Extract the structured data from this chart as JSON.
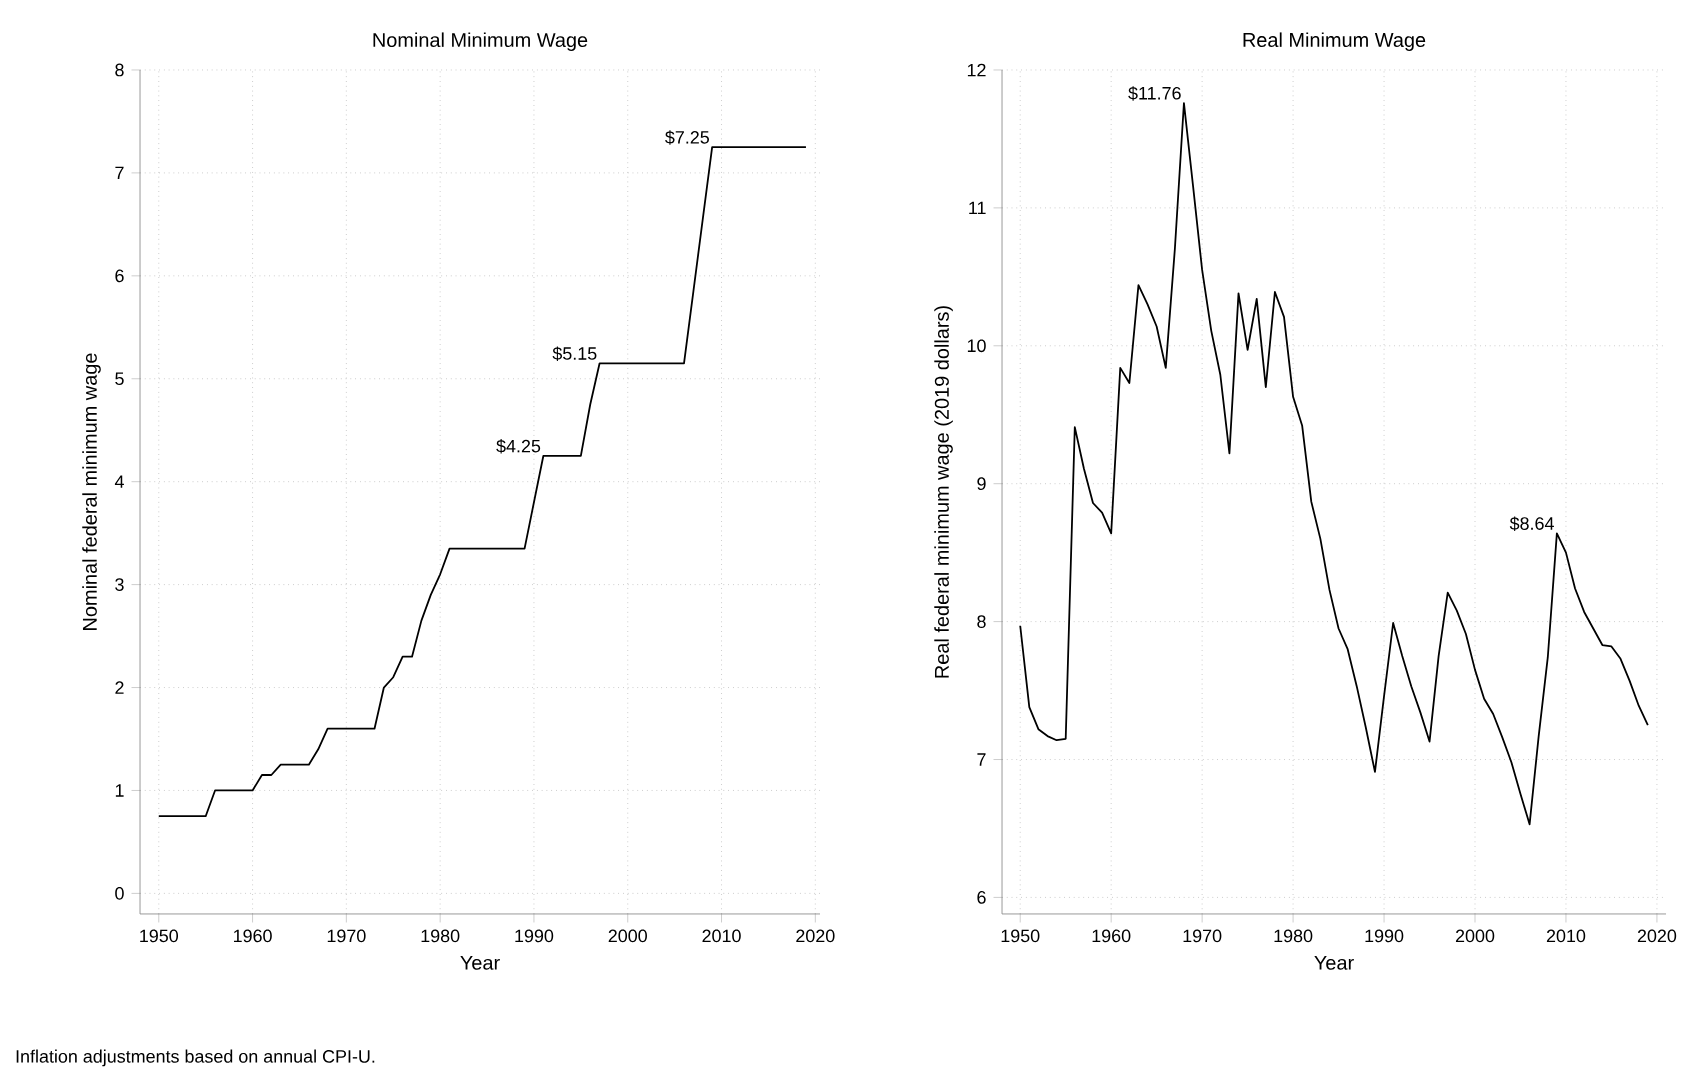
{
  "chart_data": [
    {
      "type": "line",
      "title": "Nominal Minimum Wage",
      "xlabel": "Year",
      "ylabel": "Nominal federal minimum wage",
      "x": [
        1950,
        1951,
        1952,
        1953,
        1954,
        1955,
        1956,
        1957,
        1958,
        1959,
        1960,
        1961,
        1962,
        1963,
        1964,
        1965,
        1966,
        1967,
        1968,
        1969,
        1970,
        1971,
        1972,
        1973,
        1974,
        1975,
        1976,
        1977,
        1978,
        1979,
        1980,
        1981,
        1982,
        1983,
        1984,
        1985,
        1986,
        1987,
        1988,
        1989,
        1990,
        1991,
        1992,
        1993,
        1994,
        1995,
        1996,
        1997,
        1998,
        1999,
        2000,
        2001,
        2002,
        2003,
        2004,
        2005,
        2006,
        2007,
        2008,
        2009,
        2010,
        2011,
        2012,
        2013,
        2014,
        2015,
        2016,
        2017,
        2018,
        2019
      ],
      "series": [
        {
          "color": "#000000",
          "values": [
            0.75,
            0.75,
            0.75,
            0.75,
            0.75,
            0.75,
            1.0,
            1.0,
            1.0,
            1.0,
            1.0,
            1.15,
            1.15,
            1.25,
            1.25,
            1.25,
            1.25,
            1.4,
            1.6,
            1.6,
            1.6,
            1.6,
            1.6,
            1.6,
            2.0,
            2.1,
            2.3,
            2.3,
            2.65,
            2.9,
            3.1,
            3.35,
            3.35,
            3.35,
            3.35,
            3.35,
            3.35,
            3.35,
            3.35,
            3.35,
            3.8,
            4.25,
            4.25,
            4.25,
            4.25,
            4.25,
            4.75,
            5.15,
            5.15,
            5.15,
            5.15,
            5.15,
            5.15,
            5.15,
            5.15,
            5.15,
            5.15,
            5.85,
            6.55,
            7.25,
            7.25,
            7.25,
            7.25,
            7.25,
            7.25,
            7.25,
            7.25,
            7.25,
            7.25,
            7.25
          ]
        }
      ],
      "xlim": [
        1948,
        2020.5
      ],
      "xticks": [
        1950,
        1960,
        1970,
        1980,
        1990,
        2000,
        2010,
        2020
      ],
      "ylim": [
        -0.2,
        8
      ],
      "yticks": [
        0,
        1,
        2,
        3,
        4,
        5,
        6,
        7,
        8
      ],
      "grid": true,
      "line_style": "solid",
      "annotations": [
        {
          "text": "$4.25",
          "x": 1991,
          "y": 4.25
        },
        {
          "text": "$5.15",
          "x": 1997,
          "y": 5.15
        },
        {
          "text": "$7.25",
          "x": 2009,
          "y": 7.25
        },
        "Inflation adjustments based on annual CPI-U."
      ]
    },
    {
      "type": "line",
      "title": "Real Minimum Wage",
      "xlabel": "Year",
      "ylabel": "Real federal minimum wage (2019 dollars)",
      "x": [
        1950,
        1951,
        1952,
        1953,
        1954,
        1955,
        1956,
        1957,
        1958,
        1959,
        1960,
        1961,
        1962,
        1963,
        1964,
        1965,
        1966,
        1967,
        1968,
        1969,
        1970,
        1971,
        1972,
        1973,
        1974,
        1975,
        1976,
        1977,
        1978,
        1979,
        1980,
        1981,
        1982,
        1983,
        1984,
        1985,
        1986,
        1987,
        1988,
        1989,
        1990,
        1991,
        1992,
        1993,
        1994,
        1995,
        1996,
        1997,
        1998,
        1999,
        2000,
        2001,
        2002,
        2003,
        2004,
        2005,
        2006,
        2007,
        2008,
        2009,
        2010,
        2011,
        2012,
        2013,
        2014,
        2015,
        2016,
        2017,
        2018,
        2019
      ],
      "series": [
        {
          "color": "#000000",
          "values": [
            7.97,
            7.38,
            7.22,
            7.17,
            7.14,
            7.15,
            9.41,
            9.11,
            8.86,
            8.79,
            8.64,
            9.84,
            9.73,
            10.44,
            10.3,
            10.14,
            9.84,
            10.7,
            11.76,
            11.16,
            10.55,
            10.11,
            9.79,
            9.22,
            10.38,
            9.97,
            10.34,
            9.7,
            10.39,
            10.21,
            9.63,
            9.42,
            8.87,
            8.6,
            8.23,
            7.95,
            7.8,
            7.53,
            7.23,
            6.91,
            7.46,
            7.99,
            7.75,
            7.53,
            7.34,
            7.13,
            7.75,
            8.21,
            8.08,
            7.91,
            7.65,
            7.44,
            7.33,
            7.16,
            6.98,
            6.75,
            6.53,
            7.17,
            7.74,
            8.64,
            8.5,
            8.24,
            8.07,
            7.95,
            7.83,
            7.82,
            7.73,
            7.57,
            7.39,
            7.25
          ]
        }
      ],
      "xlim": [
        1948,
        2021
      ],
      "xticks": [
        1950,
        1960,
        1970,
        1980,
        1990,
        2000,
        2010,
        2020
      ],
      "ylim": [
        5.88,
        12
      ],
      "yticks": [
        6,
        7,
        8,
        9,
        10,
        11,
        12
      ],
      "grid": true,
      "line_style": "solid",
      "annotations": [
        {
          "text": "$11.76",
          "x": 1968,
          "y": 11.76
        },
        {
          "text": "$8.64",
          "x": 2009,
          "y": 8.64
        }
      ]
    }
  ]
}
